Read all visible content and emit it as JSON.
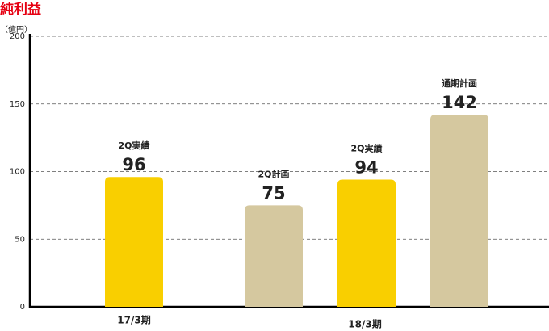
{
  "chart_data": {
    "type": "bar",
    "title": "純利益",
    "y_unit": "（億円）",
    "categories": [
      "2Q実績",
      "2Q計画",
      "2Q実績",
      "通期計画"
    ],
    "values": [
      96,
      75,
      94,
      142
    ],
    "colors": [
      "#f9cf00",
      "#d5c89f",
      "#f9cf00",
      "#d5c89f"
    ],
    "groups": [
      "17/3期",
      "18/3期"
    ],
    "ylim": [
      0,
      200
    ],
    "yticks": [
      0,
      50,
      100,
      150,
      200
    ],
    "grid": true
  }
}
